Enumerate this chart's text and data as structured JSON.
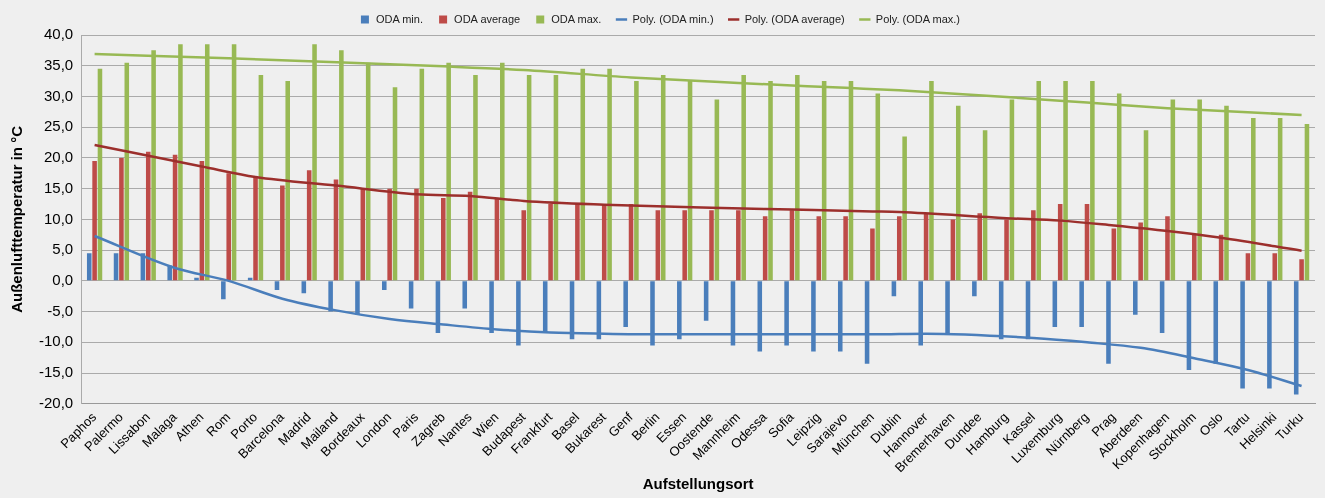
{
  "chart_data": {
    "type": "bar",
    "xlabel": "Aufstellungsort",
    "ylabel": "Außenlufttemperatur in °C",
    "categories": [
      "Paphos",
      "Palermo",
      "Lissabon",
      "Malaga",
      "Athen",
      "Rom",
      "Porto",
      "Barcelona",
      "Madrid",
      "Mailand",
      "Bordeaux",
      "London",
      "Paris",
      "Zagreb",
      "Nantes",
      "Wien",
      "Budapest",
      "Frankfurt",
      "Basel",
      "Bukarest",
      "Genf",
      "Berlin",
      "Essen",
      "Oostende",
      "Mannheim",
      "Odessa",
      "Sofia",
      "Leipzig",
      "Sarajevo",
      "München",
      "Dublin",
      "Hannover",
      "Bremerhaven",
      "Dundee",
      "Hamburg",
      "Kassel",
      "Luxemburg",
      "Nürnberg",
      "Prag",
      "Aberdeen",
      "Kopenhagen",
      "Stockholm",
      "Oslo",
      "Tartu",
      "Helsinki",
      "Turku"
    ],
    "series": [
      {
        "name": "ODA min.",
        "color": "#4a7ebb",
        "values": [
          4.5,
          4.5,
          4.5,
          2.5,
          0.5,
          -3,
          0.5,
          -1.5,
          -2,
          -5,
          -5.5,
          -1.5,
          -4.5,
          -8.5,
          -4.5,
          -8.5,
          -10.5,
          -8.5,
          -9.5,
          -9.5,
          -7.5,
          -10.5,
          -9.5,
          -6.5,
          -10.5,
          -11.5,
          -10.5,
          -11.5,
          -11.5,
          -13.5,
          -2.5,
          -10.5,
          -8.5,
          -2.5,
          -9.5,
          -9.5,
          -7.5,
          -7.5,
          -13.5,
          -5.5,
          -8.5,
          -14.5,
          -13.5,
          -17.5,
          -17.5,
          -18.5
        ]
      },
      {
        "name": "ODA average",
        "color": "#be4b48",
        "values": [
          19.5,
          20,
          21,
          20.5,
          19.5,
          17.5,
          17,
          15.5,
          18,
          16.5,
          15,
          15,
          15,
          13.5,
          14.5,
          13.5,
          11.5,
          12.5,
          12.5,
          12.5,
          12.5,
          11.5,
          11.5,
          11.5,
          11.5,
          10.5,
          11.5,
          10.5,
          10.5,
          8.5,
          10.5,
          11,
          10,
          11,
          10,
          11.5,
          12.5,
          12.5,
          8.5,
          9.5,
          10.5,
          7.5,
          7.5,
          4.5,
          4.5,
          3.5
        ]
      },
      {
        "name": "ODA max.",
        "color": "#98b954",
        "values": [
          34.5,
          35.5,
          37.5,
          38.5,
          38.5,
          38.5,
          33.5,
          32.5,
          38.5,
          37.5,
          35.5,
          31.5,
          34.5,
          35.5,
          33.5,
          35.5,
          33.5,
          33.5,
          34.5,
          34.5,
          32.5,
          33.5,
          32.5,
          29.5,
          33.5,
          32.5,
          33.5,
          32.5,
          32.5,
          30.5,
          23.5,
          32.5,
          28.5,
          24.5,
          29.5,
          32.5,
          32.5,
          32.5,
          30.5,
          24.5,
          29.5,
          29.5,
          28.5,
          26.5,
          26.5,
          25.5
        ]
      },
      {
        "name": "Poly. (ODA min.)",
        "type": "line",
        "color": "#4a7ebb",
        "x": [
          "Paphos",
          "Malaga",
          "Rom",
          "Barcelona",
          "Mailand",
          "London",
          "Zagreb",
          "Wien",
          "Frankfurt",
          "Bukarest",
          "Berlin",
          "Odessa",
          "München",
          "Hannover",
          "Kassel",
          "Nürnberg",
          "Aberdeen",
          "Stockholm",
          "Tartu",
          "Turku"
        ],
        "values": [
          7.3,
          2.1,
          0,
          -2.9,
          -4.8,
          -6.2,
          -7.1,
          -7.9,
          -8.4,
          -8.6,
          -8.7,
          -8.7,
          -8.7,
          -8.6,
          -9.3,
          -10,
          -10.9,
          -12.6,
          -14.5,
          -17.1
        ]
      },
      {
        "name": "Poly. (ODA average)",
        "type": "line",
        "color": "#9c2f2c",
        "x": [
          "Paphos",
          "Athen",
          "Porto",
          "Mailand",
          "Paris",
          "Nantes",
          "Budapest",
          "Bukarest",
          "Oostende",
          "Sofia",
          "München",
          "Dublin",
          "Hamburg",
          "Luxemburg",
          "Prag",
          "Kopenhagen",
          "Oslo",
          "Turku"
        ],
        "values": [
          22.1,
          18.6,
          16.9,
          15.5,
          14.1,
          13.8,
          13,
          12.4,
          11.9,
          11.6,
          11.3,
          11.2,
          10.2,
          9.8,
          9,
          8.1,
          7,
          4.9
        ]
      },
      {
        "name": "Poly. (ODA max.)",
        "type": "line",
        "color": "#98b954",
        "x": [
          "Paphos",
          "Rom",
          "Bordeaux",
          "Zagreb",
          "Budapest",
          "Genf",
          "Mannheim",
          "Sarajevo",
          "Dublin",
          "Hamburg",
          "Nürnberg",
          "Kopenhagen",
          "Turku"
        ],
        "values": [
          36.9,
          36.2,
          35.4,
          34.9,
          34.3,
          33.1,
          32.2,
          31.4,
          31,
          29.9,
          29,
          28.1,
          27
        ]
      }
    ],
    "ylim": [
      -20,
      40
    ],
    "yticks": [
      {
        "value": -20,
        "label": "-20,0"
      },
      {
        "value": -15,
        "label": "-15,0"
      },
      {
        "value": -10,
        "label": "-10,0"
      },
      {
        "value": -5,
        "label": "-5,0"
      },
      {
        "value": 0,
        "label": "0,0"
      },
      {
        "value": 5,
        "label": "5,0"
      },
      {
        "value": 10,
        "label": "10,0"
      },
      {
        "value": 15,
        "label": "15,0"
      },
      {
        "value": 20,
        "label": "20,0"
      },
      {
        "value": 25,
        "label": "25,0"
      },
      {
        "value": 30,
        "label": "30,0"
      },
      {
        "value": 35,
        "label": "35,0"
      },
      {
        "value": 40,
        "label": "40,0"
      }
    ],
    "grid": "y",
    "legend": "top",
    "marker": "none",
    "line_style": "solid"
  }
}
